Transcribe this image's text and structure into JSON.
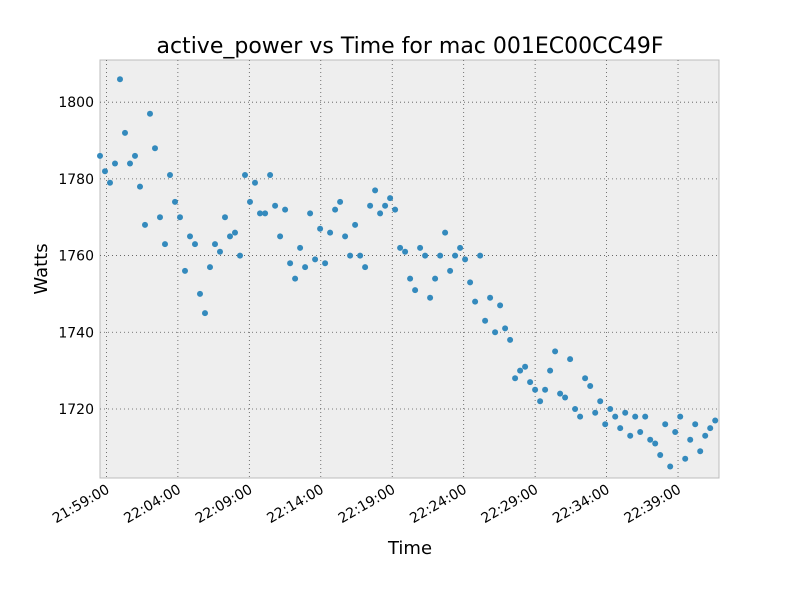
{
  "chart_data": {
    "type": "scatter",
    "title": "active_power vs Time for mac 001EC00CC49F",
    "xlabel": "Time",
    "ylabel": "Watts",
    "x_tick_labels": [
      "21:59:00",
      "22:04:00",
      "22:09:00",
      "22:14:00",
      "22:19:00",
      "22:24:00",
      "22:29:00",
      "22:34:00",
      "22:39:00"
    ],
    "y_ticks": [
      1720,
      1740,
      1760,
      1780,
      1800
    ],
    "xlim": [
      "21:58:33",
      "22:41:52"
    ],
    "ylim": [
      1702,
      1811
    ],
    "grid": true,
    "marker_color": "#348abd",
    "background_color": "#eeeeee",
    "series": [
      {
        "x": [
          "21:58:33",
          "21:58:54",
          "21:59:15",
          "21:59:36",
          "21:59:57",
          "22:00:18",
          "22:00:39",
          "22:01:00",
          "22:01:21",
          "22:01:42",
          "22:02:03",
          "22:02:24",
          "22:02:45",
          "22:03:06",
          "22:03:27",
          "22:03:48",
          "22:04:09",
          "22:04:30",
          "22:04:51",
          "22:05:12",
          "22:05:33",
          "22:05:54",
          "22:06:15",
          "22:06:36",
          "22:06:57",
          "22:07:18",
          "22:07:39",
          "22:08:00",
          "22:08:21",
          "22:08:42",
          "22:09:03",
          "22:09:24",
          "22:09:45",
          "22:10:06",
          "22:10:27",
          "22:10:48",
          "22:11:09",
          "22:11:30",
          "22:11:51",
          "22:12:12",
          "22:12:33",
          "22:12:54",
          "22:13:15",
          "22:13:36",
          "22:13:57",
          "22:14:18",
          "22:14:39",
          "22:15:00",
          "22:15:21",
          "22:15:42",
          "22:16:03",
          "22:16:24",
          "22:16:45",
          "22:17:06",
          "22:17:27",
          "22:17:48",
          "22:18:09",
          "22:18:30",
          "22:18:51",
          "22:19:12",
          "22:19:33",
          "22:19:54",
          "22:20:15",
          "22:20:36",
          "22:20:57",
          "22:21:18",
          "22:21:39",
          "22:22:00",
          "22:22:21",
          "22:22:42",
          "22:23:03",
          "22:23:24",
          "22:23:45",
          "22:24:06",
          "22:24:27",
          "22:24:48",
          "22:25:09",
          "22:25:30",
          "22:25:51",
          "22:26:12",
          "22:26:33",
          "22:26:54",
          "22:27:15",
          "22:27:36",
          "22:27:57",
          "22:28:18",
          "22:28:39",
          "22:29:00",
          "22:29:21",
          "22:29:42",
          "22:30:03",
          "22:30:24",
          "22:30:45",
          "22:31:06",
          "22:31:27",
          "22:31:48",
          "22:32:09",
          "22:32:30",
          "22:32:51",
          "22:33:12",
          "22:33:33",
          "22:33:54",
          "22:34:15",
          "22:34:36",
          "22:34:57",
          "22:35:18",
          "22:35:39",
          "22:36:00",
          "22:36:21",
          "22:36:42",
          "22:37:03",
          "22:37:24",
          "22:37:45",
          "22:38:06",
          "22:38:27",
          "22:38:48",
          "22:39:09",
          "22:39:30",
          "22:39:51",
          "22:40:12",
          "22:40:33",
          "22:40:54",
          "22:41:15",
          "22:41:36"
        ],
        "y": [
          1786,
          1782,
          1779,
          1784,
          1806,
          1792,
          1784,
          1786,
          1778,
          1768,
          1797,
          1788,
          1770,
          1763,
          1781,
          1774,
          1770,
          1756,
          1765,
          1763,
          1750,
          1745,
          1757,
          1763,
          1761,
          1770,
          1765,
          1766,
          1760,
          1781,
          1774,
          1779,
          1771,
          1771,
          1781,
          1773,
          1765,
          1772,
          1758,
          1754,
          1762,
          1757,
          1771,
          1759,
          1767,
          1758,
          1766,
          1772,
          1774,
          1765,
          1760,
          1768,
          1760,
          1757,
          1773,
          1777,
          1771,
          1773,
          1775,
          1772,
          1762,
          1761,
          1754,
          1751,
          1762,
          1760,
          1749,
          1754,
          1760,
          1766,
          1756,
          1760,
          1762,
          1759,
          1753,
          1748,
          1760,
          1743,
          1749,
          1740,
          1747,
          1741,
          1738,
          1728,
          1730,
          1731,
          1727,
          1725,
          1722,
          1725,
          1730,
          1735,
          1724,
          1723,
          1733,
          1720,
          1718,
          1728,
          1726,
          1719,
          1722,
          1716,
          1720,
          1718,
          1715,
          1719,
          1713,
          1718,
          1714,
          1718,
          1712,
          1711,
          1708,
          1716,
          1705,
          1714,
          1718,
          1707,
          1712,
          1716,
          1709,
          1713,
          1715,
          1717
        ]
      }
    ]
  }
}
